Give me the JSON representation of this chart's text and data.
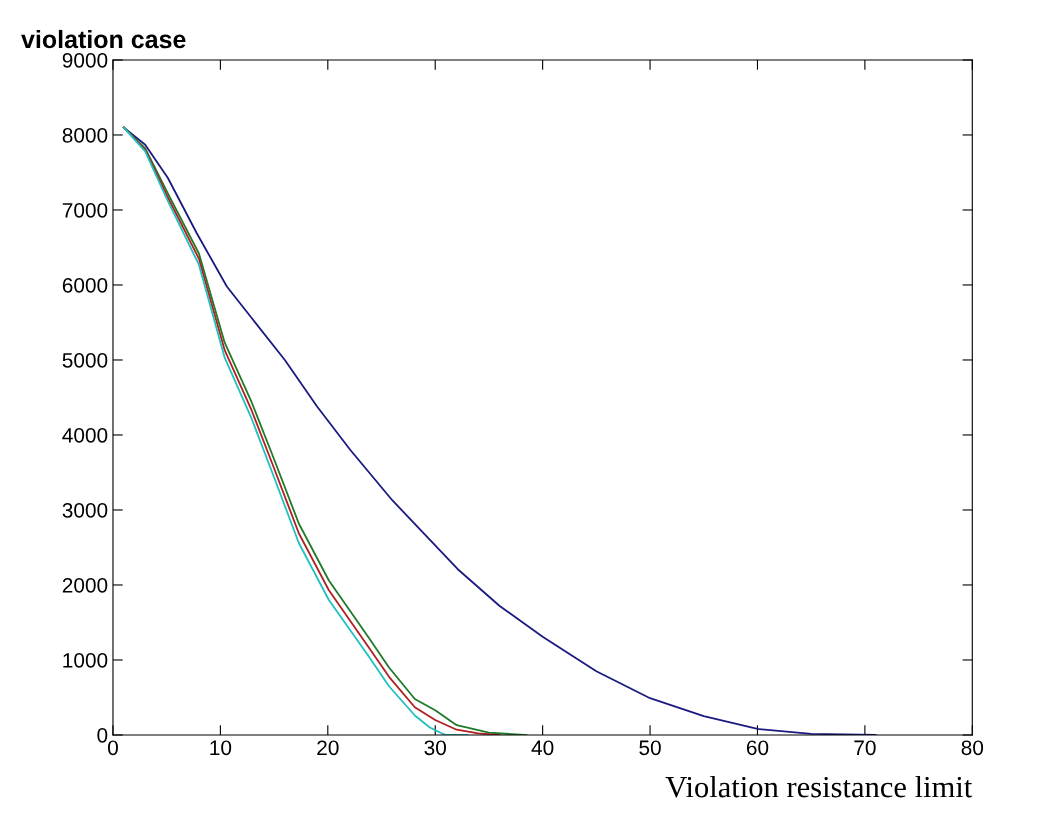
{
  "chart_data": {
    "type": "line",
    "xlabel": "Violation resistance limit",
    "ylabel": "violation case",
    "xlim": [
      0,
      80
    ],
    "ylim": [
      0,
      9000
    ],
    "xticks": [
      0,
      10,
      20,
      30,
      40,
      50,
      60,
      70,
      80
    ],
    "yticks": [
      0,
      1000,
      2000,
      3000,
      4000,
      5000,
      6000,
      7000,
      8000,
      9000
    ],
    "grid": false,
    "legend": false,
    "marker": "none",
    "line_style": "solid",
    "series": [
      {
        "color": "#1a1a80",
        "x": [
          1,
          3,
          5.1,
          7.8,
          10.6,
          12.8,
          16,
          19,
          22.1,
          26,
          32.1,
          36,
          40,
          45,
          50,
          55,
          60,
          65,
          71
        ],
        "values": [
          8100,
          7870,
          7430,
          6690,
          5980,
          5580,
          5000,
          4380,
          3800,
          3130,
          2210,
          1720,
          1310,
          850,
          490,
          250,
          80,
          15,
          0
        ]
      },
      {
        "color": "#1f7a2a",
        "x": [
          1,
          3,
          5,
          8,
          10.4,
          12.9,
          14.8,
          17.3,
          20.1,
          23.8,
          25.7,
          28.1,
          30,
          32,
          35,
          38.5
        ],
        "values": [
          8100,
          7820,
          7250,
          6420,
          5230,
          4440,
          3750,
          2820,
          2060,
          1300,
          900,
          480,
          330,
          130,
          30,
          0
        ]
      },
      {
        "color": "#b02020",
        "x": [
          1,
          3,
          5,
          8,
          10.4,
          12.9,
          14.8,
          17.3,
          20.1,
          23.8,
          25.7,
          28.1,
          30,
          32,
          34,
          36
        ],
        "values": [
          8100,
          7800,
          7200,
          6350,
          5130,
          4330,
          3630,
          2690,
          1930,
          1170,
          775,
          370,
          200,
          70,
          20,
          0
        ]
      },
      {
        "color": "#20c0c0",
        "x": [
          1,
          3,
          5,
          8,
          10.4,
          12.9,
          14.8,
          17.3,
          20.1,
          23.8,
          25.7,
          28.1,
          29.5,
          30.5,
          31,
          33
        ],
        "values": [
          8100,
          7780,
          7150,
          6270,
          5030,
          4220,
          3510,
          2560,
          1800,
          1050,
          650,
          260,
          100,
          30,
          0,
          0
        ]
      }
    ]
  }
}
